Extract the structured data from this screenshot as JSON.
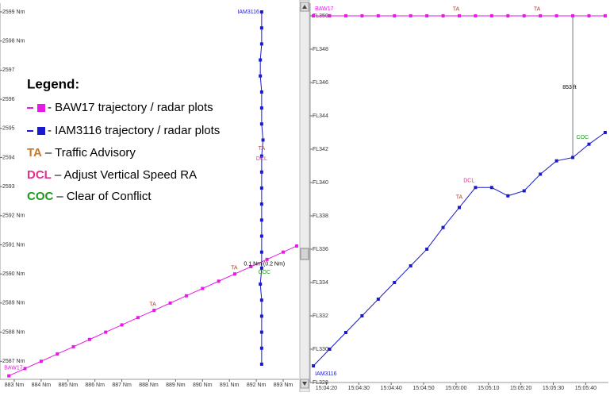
{
  "chart_data": [
    {
      "type": "scatter",
      "xlim": [
        882.47,
        893.59
      ],
      "ylim": [
        2586.38,
        2599.3
      ],
      "xticks": [
        {
          "value": 883,
          "label": "883 Nm"
        },
        {
          "value": 884,
          "label": "884 Nm"
        },
        {
          "value": 885,
          "label": "885 Nm"
        },
        {
          "value": 886,
          "label": "886 Nm"
        },
        {
          "value": 887,
          "label": "887 Nm"
        },
        {
          "value": 888,
          "label": "888 Nm"
        },
        {
          "value": 889,
          "label": "889 Nm"
        },
        {
          "value": 890,
          "label": "890 Nm"
        },
        {
          "value": 891,
          "label": "891 Nm"
        },
        {
          "value": 892,
          "label": "892 Nm"
        },
        {
          "value": 893,
          "label": "893 Nm"
        }
      ],
      "yticks": [
        {
          "value": 2587,
          "label": "2587 Nm"
        },
        {
          "value": 2588,
          "label": "2588 Nm"
        },
        {
          "value": 2589,
          "label": "2589 Nm"
        },
        {
          "value": 2590,
          "label": "2590 Nm"
        },
        {
          "value": 2591,
          "label": "2591 Nm"
        },
        {
          "value": 2592,
          "label": "2592 Nm"
        },
        {
          "value": 2593,
          "label": "2593 Nm"
        },
        {
          "value": 2594,
          "label": "2594 Nm"
        },
        {
          "value": 2595,
          "label": "2595 Nm"
        },
        {
          "value": 2596,
          "label": "2596 Nm"
        },
        {
          "value": 2597,
          "label": "2597 Nm"
        },
        {
          "value": 2598,
          "label": "2598 Nm"
        },
        {
          "value": 2599,
          "label": "2599 Nm"
        }
      ],
      "series": [
        {
          "name": "BAW17",
          "color": "#e619e6",
          "x": [
            882.8,
            883.4,
            884.0,
            884.6,
            885.2,
            885.8,
            886.4,
            887.0,
            887.6,
            888.2,
            888.8,
            889.4,
            890.0,
            890.6,
            891.2,
            891.8,
            892.4,
            893.0,
            893.5
          ],
          "values": [
            2586.5,
            2586.75,
            2587.0,
            2587.25,
            2587.5,
            2587.75,
            2588.0,
            2588.25,
            2588.5,
            2588.75,
            2589.0,
            2589.25,
            2589.5,
            2589.75,
            2590.0,
            2590.25,
            2590.5,
            2590.75,
            2590.96
          ]
        },
        {
          "name": "IAM3116",
          "color": "#1a1acc",
          "x": [
            892.2,
            892.2,
            892.2,
            892.15,
            892.15,
            892.2,
            892.2,
            892.2,
            892.25,
            892.2,
            892.2,
            892.2,
            892.2,
            892.2,
            892.2,
            892.2,
            892.2,
            892.15,
            892.2,
            892.2,
            892.2,
            892.2,
            892.2
          ],
          "values": [
            2599.0,
            2598.45,
            2597.9,
            2597.35,
            2596.8,
            2596.25,
            2595.7,
            2595.15,
            2594.6,
            2594.05,
            2593.5,
            2592.95,
            2592.4,
            2591.85,
            2591.3,
            2590.75,
            2590.2,
            2589.65,
            2589.1,
            2588.55,
            2588.0,
            2587.45,
            2586.9
          ]
        }
      ],
      "annotations": [
        {
          "text": "TA",
          "x": 888.15,
          "y": 2588.95,
          "color": "#b0402a"
        },
        {
          "text": "TA",
          "x": 891.18,
          "y": 2590.2,
          "color": "#b0402a"
        },
        {
          "text": "TA",
          "x": 892.2,
          "y": 2594.31,
          "color": "#b0402a"
        },
        {
          "text": "DCL",
          "x": 892.2,
          "y": 2593.96,
          "color": "#e6308c"
        },
        {
          "text": "COC",
          "x": 892.3,
          "y": 2590.06,
          "color": "#1a9a1a"
        },
        {
          "text": "0.1 Nm (0.2 Nm)",
          "x": 892.3,
          "y": 2590.34,
          "color": "#000000"
        }
      ]
    },
    {
      "type": "line",
      "xlim": [
        "15:04:15",
        "15:05:47"
      ],
      "ylim": [
        328,
        350.76
      ],
      "xticks": [
        "15:04:20",
        "15:04:30",
        "15:04:40",
        "15:04:50",
        "15:05:00",
        "15:05:10",
        "15:05:20",
        "15:05:30",
        "15:05:40"
      ],
      "yticks": [
        {
          "value": 328,
          "label": "FL328"
        },
        {
          "value": 330,
          "label": "FL330"
        },
        {
          "value": 332,
          "label": "FL332"
        },
        {
          "value": 334,
          "label": "FL334"
        },
        {
          "value": 336,
          "label": "FL336"
        },
        {
          "value": 338,
          "label": "FL338"
        },
        {
          "value": 340,
          "label": "FL340"
        },
        {
          "value": 342,
          "label": "FL342"
        },
        {
          "value": 344,
          "label": "FL344"
        },
        {
          "value": 346,
          "label": "FL346"
        },
        {
          "value": 348,
          "label": "FL348"
        },
        {
          "value": 350,
          "label": "FL350"
        }
      ],
      "series": [
        {
          "name": "BAW17",
          "color": "#e619e6",
          "x": [
            "15:04:16",
            "15:04:21",
            "15:04:26",
            "15:04:31",
            "15:04:36",
            "15:04:41",
            "15:04:46",
            "15:04:51",
            "15:04:56",
            "15:05:01",
            "15:05:06",
            "15:05:11",
            "15:05:16",
            "15:05:21",
            "15:05:26",
            "15:05:31",
            "15:05:36",
            "15:05:41",
            "15:05:46"
          ],
          "values": [
            350,
            350,
            350,
            350,
            350,
            350,
            350,
            350,
            350,
            350,
            350,
            350,
            350,
            350,
            350,
            350,
            350,
            350,
            350
          ]
        },
        {
          "name": "IAM3116",
          "color": "#1a1acc",
          "x": [
            "15:04:16",
            "15:04:21",
            "15:04:26",
            "15:04:31",
            "15:04:36",
            "15:04:41",
            "15:04:46",
            "15:04:51",
            "15:04:56",
            "15:05:01",
            "15:05:06",
            "15:05:11",
            "15:05:16",
            "15:05:21",
            "15:05:26",
            "15:05:31",
            "15:05:36",
            "15:05:41",
            "15:05:46"
          ],
          "values": [
            329.0,
            330.0,
            331.0,
            332.0,
            333.0,
            334.0,
            335.0,
            336.0,
            337.3,
            338.5,
            339.7,
            339.7,
            339.2,
            339.5,
            340.5,
            341.3,
            341.5,
            342.3,
            343.0
          ]
        }
      ],
      "separation": {
        "x": "15:05:36",
        "y1": 350,
        "y2": 341.5
      },
      "annotations": [
        {
          "text": "TA",
          "x": "15:05:00",
          "y": 350.4,
          "color": "#b0402a"
        },
        {
          "text": "TA",
          "x": "15:05:25",
          "y": 350.4,
          "color": "#b0402a"
        },
        {
          "text": "DCL",
          "x": "15:05:04",
          "y": 340.1,
          "color": "#e6308c"
        },
        {
          "text": "TA",
          "x": "15:05:01",
          "y": 339.1,
          "color": "#b0402a"
        },
        {
          "text": "COC",
          "x": "15:05:39",
          "y": 342.7,
          "color": "#1a9a1a"
        },
        {
          "text": "853 ft",
          "x": "15:05:35",
          "y": 345.7,
          "color": "#000000"
        }
      ]
    }
  ],
  "legend": {
    "title": "Legend:",
    "entries": [
      {
        "label": "- BAW17 trajectory / radar plots",
        "color": "#e619e6"
      },
      {
        "label": "- IAM3116 trajectory / radar plots",
        "color": "#1a1acc"
      },
      {
        "code": "TA",
        "label": "– Traffic Advisory",
        "color": "#c47a28"
      },
      {
        "code": "DCL",
        "label": "– Adjust Vertical Speed RA",
        "color": "#e6308c"
      },
      {
        "code": "COC",
        "label": "– Clear of Conflict",
        "color": "#1a9a1a"
      }
    ]
  }
}
